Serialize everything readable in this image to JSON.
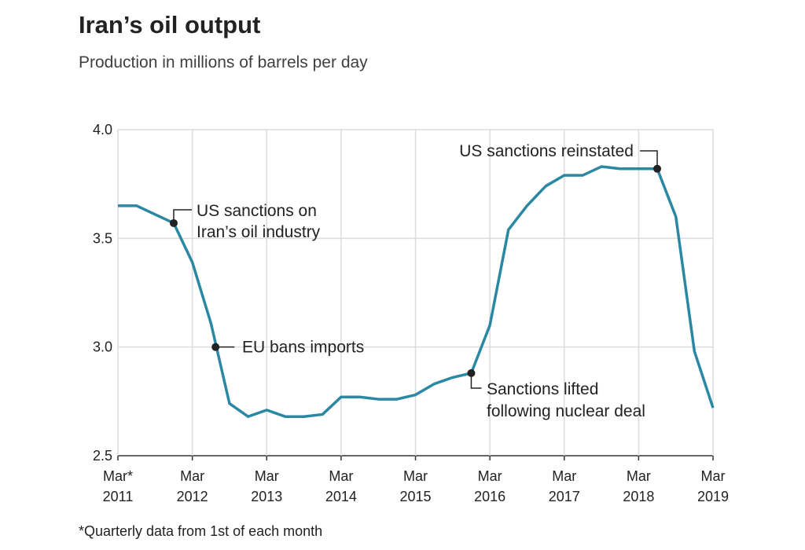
{
  "chart_data": {
    "type": "line",
    "title": "Iran’s oil output",
    "subtitle": "Production in millions of barrels per day",
    "footnote": "*Quarterly data from 1st of each month",
    "xlabel": "",
    "ylabel": "",
    "ylim": [
      2.5,
      4.0
    ],
    "yticks": [
      "2.5",
      "3.0",
      "3.5",
      "4.0"
    ],
    "xticks": [
      [
        "Mar*",
        "2011"
      ],
      [
        "Mar",
        "2012"
      ],
      [
        "Mar",
        "2013"
      ],
      [
        "Mar",
        "2014"
      ],
      [
        "Mar",
        "2015"
      ],
      [
        "Mar",
        "2016"
      ],
      [
        "Mar",
        "2017"
      ],
      [
        "Mar",
        "2018"
      ],
      [
        "Mar",
        "2019"
      ]
    ],
    "grid": true,
    "line_color": "#2a88a3",
    "series": [
      {
        "name": "Production",
        "x_quarters_from_mar_2011": [
          0,
          1,
          2,
          3,
          4,
          5,
          6,
          7,
          8,
          9,
          10,
          11,
          12,
          13,
          14,
          15,
          16,
          17,
          18,
          19,
          20,
          21,
          22,
          23,
          24,
          25,
          26,
          27,
          28,
          29,
          30,
          31,
          32
        ],
        "values": [
          3.65,
          3.65,
          3.61,
          3.57,
          3.39,
          3.11,
          2.74,
          2.68,
          2.71,
          2.68,
          2.68,
          2.69,
          2.77,
          2.77,
          2.76,
          2.76,
          2.78,
          2.83,
          2.86,
          2.88,
          3.1,
          3.54,
          3.65,
          3.74,
          3.79,
          3.79,
          3.83,
          3.82,
          3.82,
          3.82,
          3.6,
          2.98,
          2.72
        ]
      }
    ],
    "annotations": [
      {
        "lines": [
          "US sanctions on",
          "Iran’s oil industry"
        ],
        "q": 3,
        "value": 3.57
      },
      {
        "lines": [
          "EU bans imports"
        ],
        "q": 5.25,
        "value": 3.0
      },
      {
        "lines": [
          "Sanctions lifted",
          "following nuclear deal"
        ],
        "q": 19,
        "value": 2.88
      },
      {
        "lines": [
          "US sanctions reinstated"
        ],
        "q": 29,
        "value": 3.82
      }
    ]
  }
}
